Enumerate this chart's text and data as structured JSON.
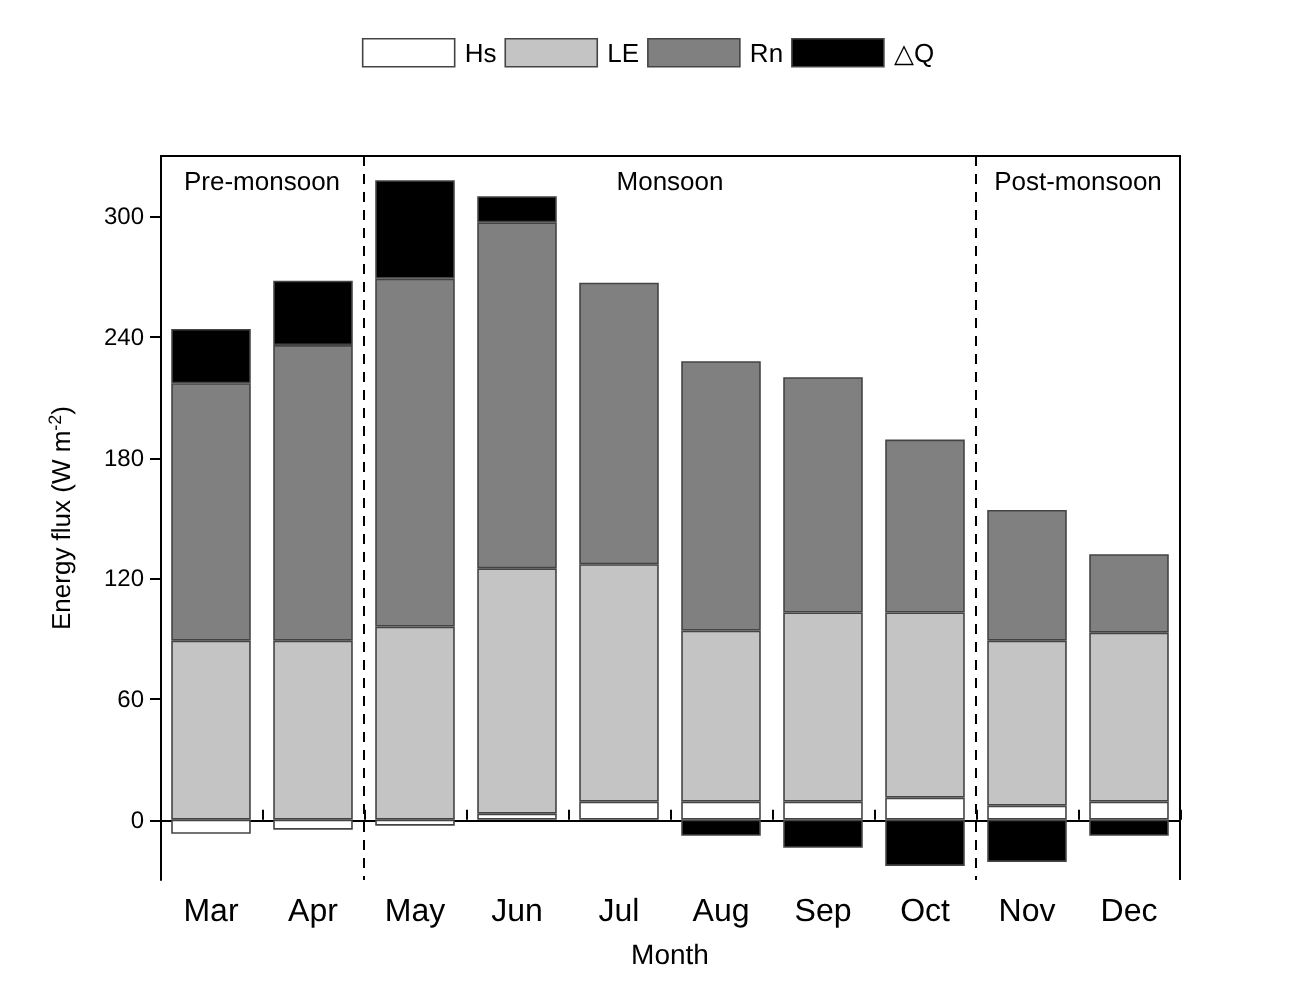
{
  "chart_data": {
    "type": "bar",
    "stacked": true,
    "xlabel": "Month",
    "ylabel": "Energy flux (W m$^{-2}$)",
    "categories": [
      "Mar",
      "Apr",
      "May",
      "Jun",
      "Jul",
      "Aug",
      "Sep",
      "Oct",
      "Nov",
      "Dec"
    ],
    "series": [
      {
        "name": "Hs",
        "color": "#ffffff",
        "values": [
          -7,
          -5,
          -3,
          3,
          9,
          9,
          9,
          11,
          7,
          9
        ]
      },
      {
        "name": "LE",
        "color": "#c4c4c4",
        "values": [
          89,
          89,
          96,
          122,
          118,
          85,
          94,
          92,
          82,
          84
        ]
      },
      {
        "name": "Rn",
        "color": "#808080",
        "values": [
          128,
          147,
          173,
          172,
          140,
          134,
          117,
          86,
          65,
          39
        ]
      },
      {
        "name": "△Q",
        "color": "#000000",
        "values": [
          27,
          32,
          49,
          13,
          null,
          -8,
          -14,
          -23,
          -21,
          -8
        ]
      }
    ],
    "ylim": [
      -30,
      330
    ],
    "yticks": [
      0,
      60,
      120,
      180,
      240,
      300
    ],
    "annotations": [
      "Pre-monsoon",
      "Monsoon",
      "Post-monsoon"
    ],
    "grid": false,
    "legend": "top"
  }
}
